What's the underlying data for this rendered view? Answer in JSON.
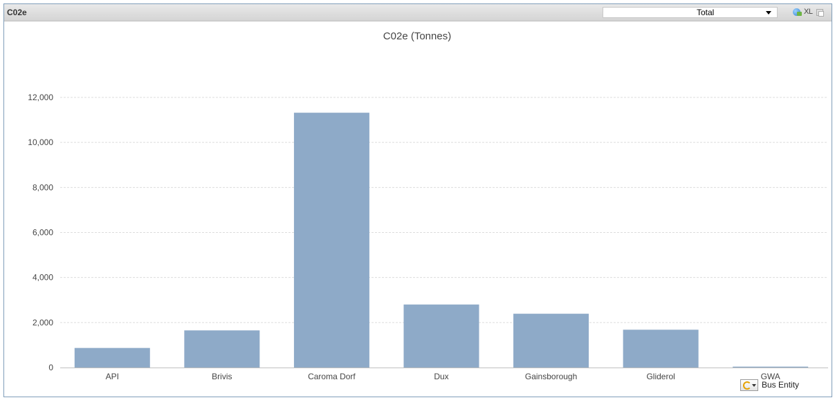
{
  "caption": {
    "title": "C02e",
    "dropdown_value": "Total",
    "xl_label": "XL",
    "icons": [
      "globe-icon",
      "restore-icon"
    ]
  },
  "cycle_group": {
    "label": "Bus Entity",
    "icon": "cycle-icon"
  },
  "colors": {
    "bar": "#8eaac8",
    "grid": "#dcdcdc",
    "caption_bar": "#d9d9d9"
  },
  "chart_data": {
    "type": "bar",
    "title": "C02e (Tonnes)",
    "categories": [
      "API",
      "Brivis",
      "Caroma Dorf",
      "Dux",
      "Gainsborough",
      "Gliderol",
      "GWA"
    ],
    "values": [
      870,
      1650,
      11320,
      2800,
      2390,
      1680,
      40
    ],
    "ylim": [
      0,
      12000
    ],
    "yticks": [
      0,
      2000,
      4000,
      6000,
      8000,
      10000,
      12000
    ],
    "ytick_labels": [
      "0",
      "2,000",
      "4,000",
      "6,000",
      "8,000",
      "10,000",
      "12,000"
    ],
    "grid": true,
    "legend": "none"
  }
}
